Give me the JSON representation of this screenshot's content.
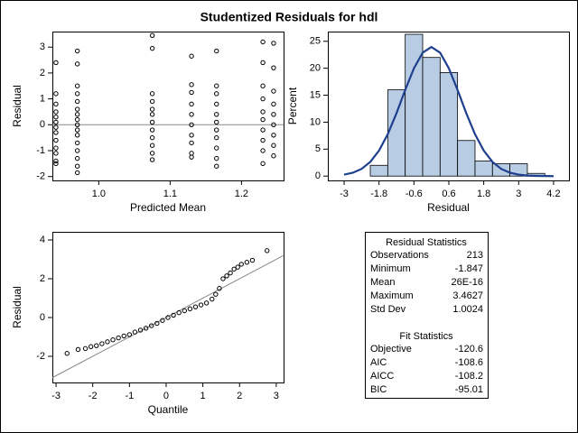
{
  "title": "Studentized Residuals for hdl",
  "chart_data": [
    {
      "type": "scatter",
      "xlabel": "Predicted Mean",
      "ylabel": "Residual",
      "xlim": [
        0.935,
        1.259
      ],
      "ylim": [
        -2.15,
        3.6
      ],
      "xticks": [
        {
          "value": 1,
          "label": "1.0"
        },
        1.1,
        1.2
      ],
      "yticks": [
        -2,
        -1,
        0,
        1,
        2,
        3
      ],
      "reference_line": {
        "y": 0
      },
      "color": "#000000",
      "x": [
        0.94,
        0.94,
        0.94,
        0.94,
        0.94,
        0.94,
        0.94,
        0.94,
        0.94,
        0.94,
        0.94,
        0.94,
        0.94,
        0.97,
        0.97,
        0.97,
        0.97,
        0.97,
        0.97,
        0.97,
        0.97,
        0.97,
        0.97,
        0.97,
        0.97,
        0.97,
        0.97,
        0.97,
        0.97,
        1.075,
        1.075,
        1.075,
        1.075,
        1.075,
        1.075,
        1.075,
        1.075,
        1.075,
        1.075,
        1.075,
        1.075,
        1.13,
        1.13,
        1.13,
        1.13,
        1.13,
        1.13,
        1.13,
        1.13,
        1.13,
        1.13,
        1.165,
        1.165,
        1.165,
        1.165,
        1.165,
        1.165,
        1.165,
        1.165,
        1.165,
        1.165,
        1.165,
        1.23,
        1.23,
        1.23,
        1.23,
        1.23,
        1.23,
        1.23,
        1.23,
        1.23,
        1.23,
        1.245,
        1.245,
        1.245,
        1.245,
        1.245,
        1.245,
        1.245,
        1.245,
        1.245
      ],
      "values": [
        2.4,
        1.2,
        0.8,
        0.5,
        0.3,
        0.1,
        -0.1,
        -0.3,
        -0.6,
        -0.9,
        -1.1,
        -1.4,
        -1.5,
        2.85,
        2.35,
        1.5,
        1.2,
        0.9,
        0.6,
        0.4,
        0.2,
        0,
        -0.2,
        -0.4,
        -0.7,
        -1.0,
        -1.3,
        -1.6,
        -1.85,
        3.45,
        2.95,
        1.2,
        0.9,
        0.6,
        0.4,
        0.1,
        -0.2,
        -0.5,
        -0.8,
        -1.1,
        -1.35,
        2.65,
        1.55,
        1.25,
        0.8,
        0.4,
        0,
        -0.4,
        -0.7,
        -1.1,
        -1.25,
        2.85,
        1.5,
        1.2,
        0.8,
        0.4,
        0.1,
        -0.2,
        -0.5,
        -0.9,
        -1.3,
        -1.6,
        3.2,
        2.4,
        1.5,
        1.0,
        0.5,
        0.2,
        -0.2,
        -0.6,
        -1.0,
        -1.5,
        3.15,
        2.2,
        1.3,
        0.8,
        0.4,
        0,
        -0.4,
        -0.8,
        -1.2
      ]
    },
    {
      "type": "histogram",
      "xlabel": "Residual",
      "ylabel": "Percent",
      "xlim": [
        -3.56,
        4.73
      ],
      "ylim": [
        -0.8,
        26.8
      ],
      "xticks": [
        -3,
        -1.8,
        -0.6,
        0.6,
        1.8,
        3,
        4.2
      ],
      "yticks": [
        0,
        5,
        10,
        15,
        20,
        25
      ],
      "color": "#b8cce4",
      "bins": [
        -2.1,
        -1.5,
        -0.9,
        -0.3,
        0.3,
        0.9,
        1.5,
        2.1,
        2.7,
        3.3,
        3.9
      ],
      "values": [
        2,
        16,
        26.3,
        22,
        19.2,
        6.6,
        2.8,
        2.3,
        2.3,
        0.5
      ],
      "curve": {
        "color": "#1f3f8f",
        "x": [
          -3,
          -2.7,
          -2.4,
          -2.1,
          -1.8,
          -1.5,
          -1.2,
          -0.9,
          -0.6,
          -0.3,
          0,
          0.3,
          0.6,
          0.9,
          1.2,
          1.5,
          1.8,
          2.1,
          2.4,
          2.7,
          3,
          3.3,
          3.6,
          3.9,
          4.2
        ],
        "values": [
          0.27,
          0.62,
          1.34,
          2.64,
          4.74,
          7.77,
          11.65,
          15.97,
          19.99,
          22.88,
          23.94,
          22.88,
          19.99,
          15.97,
          11.65,
          7.77,
          4.74,
          2.64,
          1.34,
          0.62,
          0.27,
          0.1,
          0.04,
          0.01,
          0
        ]
      }
    },
    {
      "type": "scatter",
      "xlabel": "Quantile",
      "ylabel": "Residual",
      "xlim": [
        -3.1,
        3.2
      ],
      "ylim": [
        -3.35,
        4.42
      ],
      "xticks": [
        -3,
        -2,
        -1,
        0,
        1,
        2,
        3
      ],
      "yticks": [
        -2,
        0,
        2,
        4
      ],
      "reference_line": {
        "intercept": 0,
        "slope": 1
      },
      "color": "#000000",
      "x": [
        -2.7,
        -2.4,
        -2.2,
        -2.05,
        -1.9,
        -1.75,
        -1.6,
        -1.45,
        -1.3,
        -1.15,
        -1.0,
        -0.85,
        -0.7,
        -0.55,
        -0.4,
        -0.25,
        -0.1,
        0.05,
        0.2,
        0.35,
        0.5,
        0.65,
        0.8,
        0.95,
        1.1,
        1.25,
        1.35,
        1.45,
        1.55,
        1.65,
        1.75,
        1.85,
        1.95,
        2.05,
        2.2,
        2.35,
        2.75
      ],
      "values": [
        -1.85,
        -1.65,
        -1.6,
        -1.5,
        -1.45,
        -1.35,
        -1.25,
        -1.15,
        -1.05,
        -0.95,
        -0.88,
        -0.75,
        -0.65,
        -0.55,
        -0.42,
        -0.3,
        -0.15,
        0,
        0.12,
        0.25,
        0.35,
        0.45,
        0.55,
        0.65,
        0.75,
        0.95,
        1.2,
        1.5,
        2.0,
        2.15,
        2.3,
        2.5,
        2.6,
        2.75,
        2.85,
        2.95,
        3.45
      ]
    }
  ],
  "table": {
    "sections": [
      {
        "title": "Residual Statistics",
        "rows": [
          [
            "Observations",
            "213"
          ],
          [
            "Minimum",
            "-1.847"
          ],
          [
            "Mean",
            "26E-16"
          ],
          [
            "Maximum",
            "3.4627"
          ],
          [
            "Std Dev",
            "1.0024"
          ]
        ]
      },
      {
        "title": "Fit Statistics",
        "rows": [
          [
            "Objective",
            "-120.6"
          ],
          [
            "AIC",
            "-108.6"
          ],
          [
            "AICC",
            "-108.2"
          ],
          [
            "BIC",
            "-95.01"
          ]
        ]
      }
    ]
  }
}
